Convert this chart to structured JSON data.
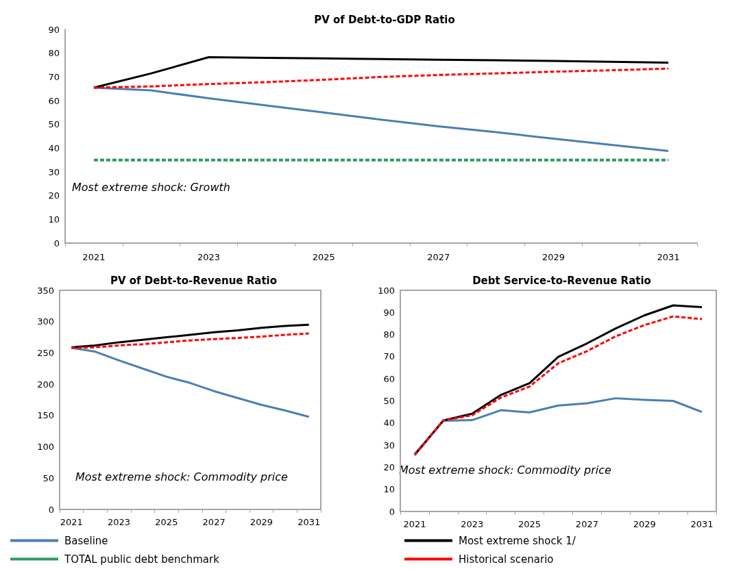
{
  "chart_data": [
    {
      "type": "line",
      "title": "PV of Debt-to-GDP Ratio",
      "categories": [
        "2021",
        null,
        "2023",
        null,
        "2025",
        null,
        "2027",
        null,
        "2029",
        null,
        "2031"
      ],
      "ylim": [
        0,
        90
      ],
      "yticks": [
        0,
        10,
        20,
        30,
        40,
        50,
        60,
        70,
        80,
        90
      ],
      "grid": false,
      "legend": "bottom",
      "annotations": [
        "Most extreme shock: Growth"
      ],
      "series": [
        {
          "name": "Baseline",
          "color": "#4a7fb0",
          "line_style": "solid",
          "values": [
            65.5,
            64.3,
            61.0,
            58.0,
            55.0,
            52.0,
            49.2,
            46.7,
            44.0,
            41.4,
            38.8
          ]
        },
        {
          "name": "Most extreme shock 1/",
          "color": "#000000",
          "line_style": "solid",
          "values": [
            65.5,
            71.5,
            78.3,
            78.0,
            77.8,
            77.5,
            77.2,
            77.0,
            76.7,
            76.4,
            76.0
          ]
        },
        {
          "name": "TOTAL public debt benchmark",
          "color": "#2e9a5e",
          "line_style": "dashed",
          "values": [
            35,
            35,
            35,
            35,
            35,
            35,
            35,
            35,
            35,
            35,
            35
          ]
        },
        {
          "name": "Historical scenario",
          "color": "#ff0000",
          "line_style": "dashed",
          "values": [
            65.5,
            66.0,
            67.0,
            67.8,
            68.8,
            70.0,
            70.8,
            71.5,
            72.2,
            72.8,
            73.5
          ]
        }
      ]
    },
    {
      "type": "line",
      "title": "PV of Debt-to-Revenue Ratio",
      "categories": [
        "2021",
        null,
        "2023",
        null,
        "2025",
        null,
        "2027",
        null,
        "2029",
        null,
        "2031"
      ],
      "ylim": [
        0,
        350
      ],
      "yticks": [
        0,
        50,
        100,
        150,
        200,
        250,
        300,
        350
      ],
      "grid": false,
      "annotations": [
        "Most extreme shock: Commodity price"
      ],
      "series": [
        {
          "color": "#4a7fb0",
          "line_style": "solid",
          "values": [
            258,
            252,
            238,
            225,
            212,
            202,
            189,
            178,
            167,
            158,
            148
          ]
        },
        {
          "color": "#000000",
          "line_style": "solid",
          "values": [
            259,
            262,
            267,
            271,
            275,
            279,
            283,
            286,
            290,
            293,
            295
          ]
        },
        {
          "color": "#ff0000",
          "line_style": "dashed",
          "values": [
            258,
            259,
            262,
            264,
            267,
            270,
            272,
            274,
            276,
            279,
            281
          ]
        }
      ]
    },
    {
      "type": "line",
      "title": "Debt Service-to-Revenue Ratio",
      "categories": [
        "2021",
        null,
        "2023",
        null,
        "2025",
        null,
        "2027",
        null,
        "2029",
        null,
        "2031"
      ],
      "ylim": [
        0,
        100
      ],
      "yticks": [
        0,
        10,
        20,
        30,
        40,
        50,
        60,
        70,
        80,
        90,
        100
      ],
      "grid": false,
      "annotations": [
        "Most extreme shock: Commodity price"
      ],
      "series": [
        {
          "color": "#4a7fb0",
          "line_style": "solid",
          "values": [
            26,
            41,
            41.3,
            45.8,
            44.8,
            47.9,
            48.9,
            51.2,
            50.5,
            50.0,
            45.0
          ]
        },
        {
          "color": "#000000",
          "line_style": "solid",
          "values": [
            25.5,
            41.2,
            44.2,
            52.7,
            58,
            69.9,
            76,
            82.8,
            88.7,
            93.2,
            92.4
          ]
        },
        {
          "color": "#ff0000",
          "line_style": "dashed",
          "values": [
            25.5,
            41.2,
            43.5,
            51.5,
            56.5,
            67,
            72.5,
            79.2,
            84.3,
            88.2,
            87.0
          ]
        }
      ]
    }
  ]
}
